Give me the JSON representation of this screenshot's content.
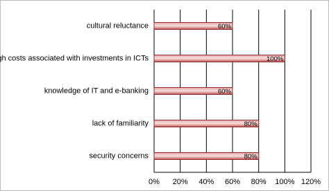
{
  "chart_data": {
    "type": "hbar",
    "categories": [
      "cultural reluctance",
      "high costs associated with investments in ICTs",
      "knowledge of IT and e-banking",
      "lack of familiarity",
      "security concerns"
    ],
    "values": [
      60,
      100,
      60,
      80,
      80
    ],
    "value_labels": [
      "60%",
      "100%",
      "60%",
      "80%",
      "80%"
    ],
    "color": "#c0504d",
    "xlim": [
      0,
      120
    ],
    "xticks": [
      {
        "value": 0,
        "label": "0%"
      },
      {
        "value": 20,
        "label": "20%"
      },
      {
        "value": 40,
        "label": "40%"
      },
      {
        "value": 60,
        "label": "60%"
      },
      {
        "value": 80,
        "label": "80%"
      },
      {
        "value": 100,
        "label": "100%"
      },
      {
        "value": 120,
        "label": "120%"
      }
    ],
    "grid": true
  }
}
